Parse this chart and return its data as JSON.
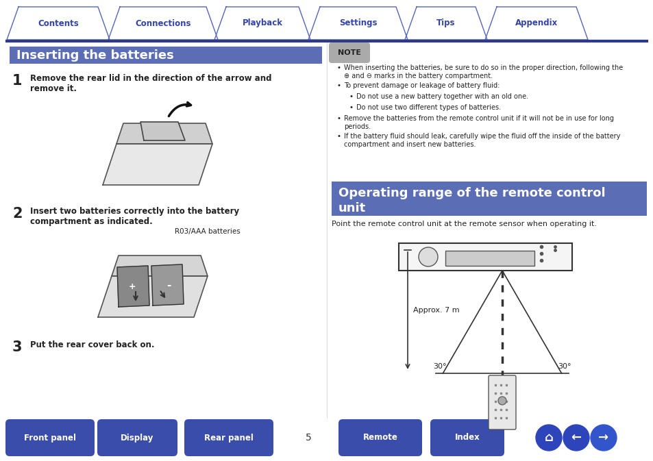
{
  "bg_color": "#ffffff",
  "header_line_color": "#2e3a87",
  "tab_text_color": "#3344aa",
  "tab_border_color": "#5566bb",
  "tab_labels": [
    "Contents",
    "Connections",
    "Playback",
    "Settings",
    "Tips",
    "Appendix"
  ],
  "section1_title": "Inserting the batteries",
  "section_bg": "#5b6db5",
  "section_text_color": "#ffffff",
  "section2_title_line1": "Operating range of the remote control",
  "section2_title_line2": "unit",
  "note_label": "NOTE",
  "note_bg": "#aaaaaa",
  "body_text_color": "#222222",
  "step1_num": "1",
  "step1_text": "Remove the rear lid in the direction of the arrow and\nremove it.",
  "step2_num": "2",
  "step2_text": "Insert two batteries correctly into the battery\ncompartment as indicated.",
  "step2_label": "R03/AAA batteries",
  "step3_num": "3",
  "step3_text": "Put the rear cover back on.",
  "note_bullets": [
    "When inserting the batteries, be sure to do so in the proper direction, following the\n⊕ and ⊖ marks in the battery compartment.",
    "To prevent damage or leakage of battery fluid:",
    "Do not use a new battery together with an old one.",
    "Do not use two different types of batteries.",
    "Remove the batteries from the remote control unit if it will not be in use for long\nperiods.",
    "If the battery fluid should leak, carefully wipe the fluid off the inside of the battery\ncompartment and insert new batteries."
  ],
  "operating_text": "Point the remote control unit at the remote sensor when operating it.",
  "approx_label": "Approx. 7 m",
  "angle_label1": "30°",
  "angle_label2": "30°",
  "footer_buttons": [
    "Front panel",
    "Display",
    "Rear panel",
    "Remote",
    "Index"
  ],
  "footer_page": "5",
  "footer_btn_color": "#3a4daa",
  "footer_btn_text": "#ffffff"
}
